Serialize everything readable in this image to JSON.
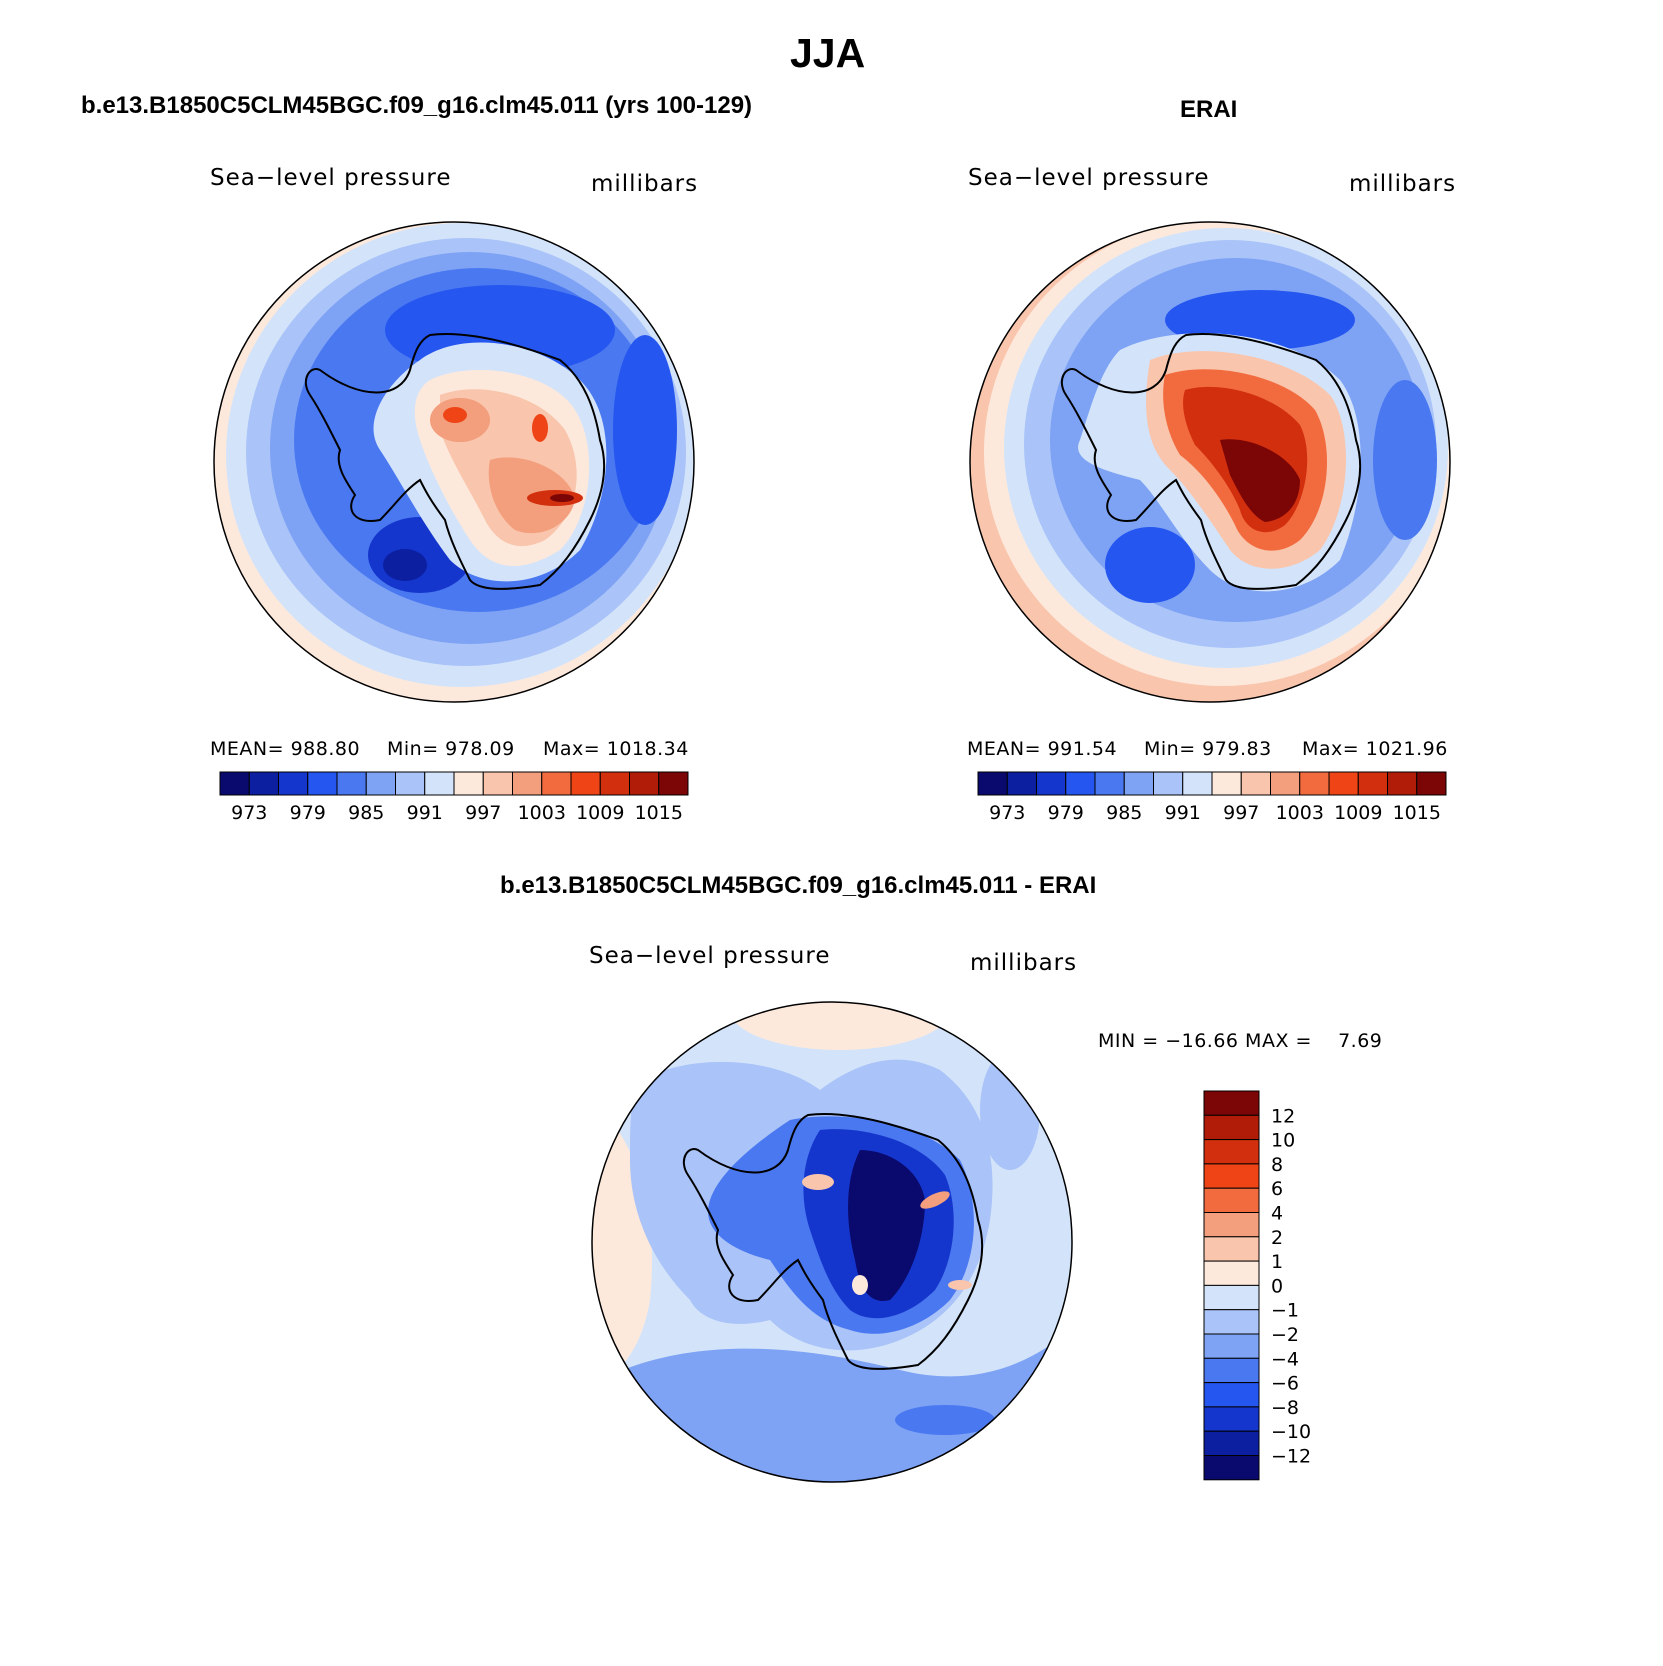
{
  "title": "JJA",
  "panels": {
    "model": {
      "title": "b.e13.B1850C5CLM45BGC.f09_g16.clm45.011 (yrs 100-129)",
      "left_label": "Sea−level pressure",
      "right_label": "millibars",
      "stats": {
        "mean": "MEAN= 988.80",
        "min": "Min= 978.09",
        "max": "Max= 1018.34"
      }
    },
    "obs": {
      "title": "ERAI",
      "left_label": "Sea−level pressure",
      "right_label": "millibars",
      "stats": {
        "mean": "MEAN= 991.54",
        "min": "Min= 979.83",
        "max": "Max= 1021.96"
      }
    },
    "diff": {
      "title": "b.e13.B1850C5CLM45BGC.f09_g16.clm45.011 - ERAI",
      "left_label": "Sea−level pressure",
      "right_label": "millibars",
      "minmax": "MIN = −16.66 MAX =    7.69"
    }
  },
  "chart_data": [
    {
      "type": "heatmap",
      "name": "model",
      "field": "Sea-level pressure",
      "units": "millibars",
      "projection": "south polar stereographic",
      "mean": 988.8,
      "min": 978.09,
      "max": 1018.34,
      "levels": [
        973,
        976,
        979,
        982,
        985,
        988,
        991,
        994,
        997,
        1000,
        1003,
        1006,
        1009,
        1012,
        1015
      ],
      "tick_labels": [
        "973",
        "979",
        "985",
        "991",
        "997",
        "1003",
        "1009",
        "1015"
      ],
      "colors": [
        "#0a0a6e",
        "#0b1fa0",
        "#1536cc",
        "#2556f0",
        "#4a78f0",
        "#7ea3f5",
        "#aac3f8",
        "#d3e4fa",
        "#fde9dc",
        "#f9c5ac",
        "#f39e7c",
        "#f26b3f",
        "#ee4416",
        "#d22f0e",
        "#b01c08",
        "#7c0505"
      ]
    },
    {
      "type": "heatmap",
      "name": "obs",
      "field": "Sea-level pressure",
      "units": "millibars",
      "projection": "south polar stereographic",
      "mean": 991.54,
      "min": 979.83,
      "max": 1021.96,
      "levels": [
        973,
        976,
        979,
        982,
        985,
        988,
        991,
        994,
        997,
        1000,
        1003,
        1006,
        1009,
        1012,
        1015
      ],
      "tick_labels": [
        "973",
        "979",
        "985",
        "991",
        "997",
        "1003",
        "1009",
        "1015"
      ],
      "colors": [
        "#0a0a6e",
        "#0b1fa0",
        "#1536cc",
        "#2556f0",
        "#4a78f0",
        "#7ea3f5",
        "#aac3f8",
        "#d3e4fa",
        "#fde9dc",
        "#f9c5ac",
        "#f39e7c",
        "#f26b3f",
        "#ee4416",
        "#d22f0e",
        "#b01c08",
        "#7c0505"
      ]
    },
    {
      "type": "heatmap",
      "name": "difference",
      "field": "Sea-level pressure",
      "units": "millibars",
      "projection": "south polar stereographic",
      "min": -16.66,
      "max": 7.69,
      "levels": [
        -12,
        -10,
        -8,
        -6,
        -4,
        -2,
        -1,
        0,
        1,
        2,
        4,
        6,
        8,
        10,
        12
      ],
      "tick_labels": [
        "12",
        "10",
        "8",
        "6",
        "4",
        "2",
        "1",
        "0",
        "−1",
        "−2",
        "−4",
        "−6",
        "−8",
        "−10",
        "−12"
      ],
      "colors": [
        "#7c0505",
        "#b01c08",
        "#d22f0e",
        "#ee4416",
        "#f26b3f",
        "#f39e7c",
        "#f9c5ac",
        "#fde9dc",
        "#d3e4fa",
        "#aac3f8",
        "#7ea3f5",
        "#4a78f0",
        "#2556f0",
        "#1536cc",
        "#0b1fa0",
        "#0a0a6e"
      ]
    }
  ]
}
